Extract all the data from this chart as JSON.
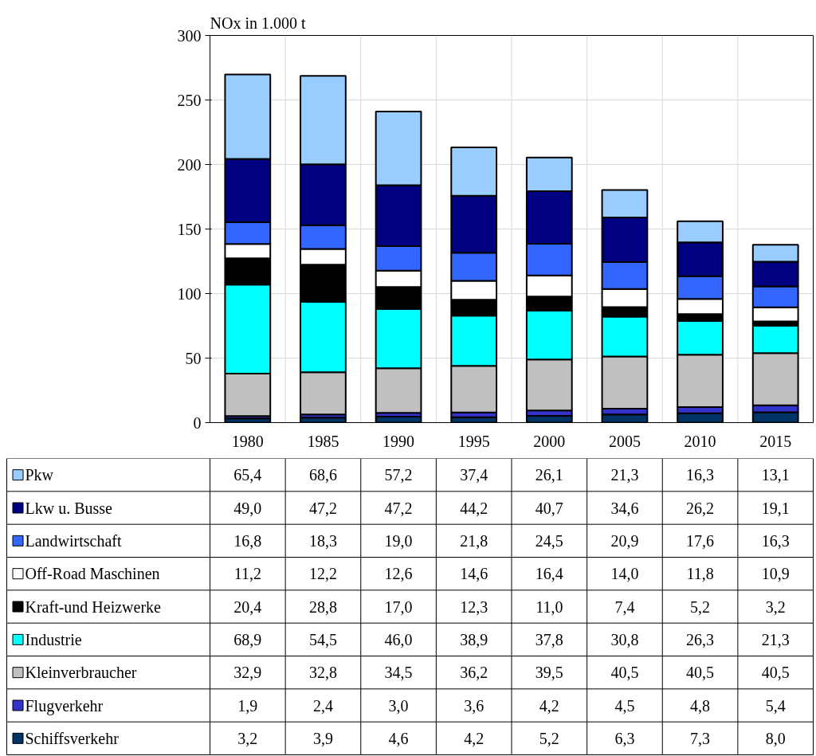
{
  "chart_data": {
    "type": "bar",
    "stacked": true,
    "ylabel": "NOx in 1.000 t",
    "categories": [
      "1980",
      "1985",
      "1990",
      "1995",
      "2000",
      "2005",
      "2010",
      "2015"
    ],
    "ylim": [
      0,
      300
    ],
    "yticks": [
      0,
      50,
      100,
      150,
      200,
      250,
      300
    ],
    "grid": true,
    "legend": "bottom",
    "series": [
      {
        "name": "Schiffsverkehr",
        "color": "#003366",
        "values": [
          3.2,
          3.9,
          4.6,
          4.2,
          5.2,
          6.3,
          7.3,
          8.0
        ],
        "value_labels": [
          "3,2",
          "3,9",
          "4,6",
          "4,2",
          "5,2",
          "6,3",
          "7,3",
          "8,0"
        ]
      },
      {
        "name": "Flugverkehr",
        "color": "#3333cc",
        "values": [
          1.9,
          2.4,
          3.0,
          3.6,
          4.2,
          4.5,
          4.8,
          5.4
        ],
        "value_labels": [
          "1,9",
          "2,4",
          "3,0",
          "3,6",
          "4,2",
          "4,5",
          "4,8",
          "5,4"
        ]
      },
      {
        "name": "Kleinverbraucher",
        "color": "#c0c0c0",
        "values": [
          32.9,
          32.8,
          34.5,
          36.2,
          39.5,
          40.5,
          40.5,
          40.5
        ],
        "value_labels": [
          "32,9",
          "32,8",
          "34,5",
          "36,2",
          "39,5",
          "40,5",
          "40,5",
          "40,5"
        ]
      },
      {
        "name": "Industrie",
        "color": "#00ffff",
        "values": [
          68.9,
          54.5,
          46.0,
          38.9,
          37.8,
          30.8,
          26.3,
          21.3
        ],
        "value_labels": [
          "68,9",
          "54,5",
          "46,0",
          "38,9",
          "37,8",
          "30,8",
          "26,3",
          "21,3"
        ]
      },
      {
        "name": "Kraft-und Heizwerke",
        "color": "#000000",
        "values": [
          20.4,
          28.8,
          17.0,
          12.3,
          11.0,
          7.4,
          5.2,
          3.2
        ],
        "value_labels": [
          "20,4",
          "28,8",
          "17,0",
          "12,3",
          "11,0",
          "7,4",
          "5,2",
          "3,2"
        ]
      },
      {
        "name": "Off-Road Maschinen",
        "color": "#ffffff",
        "values": [
          11.2,
          12.2,
          12.6,
          14.6,
          16.4,
          14.0,
          11.8,
          10.9
        ],
        "value_labels": [
          "11,2",
          "12,2",
          "12,6",
          "14,6",
          "16,4",
          "14,0",
          "11,8",
          "10,9"
        ]
      },
      {
        "name": "Landwirtschaft",
        "color": "#3366ff",
        "values": [
          16.8,
          18.3,
          19.0,
          21.8,
          24.5,
          20.9,
          17.6,
          16.3
        ],
        "value_labels": [
          "16,8",
          "18,3",
          "19,0",
          "21,8",
          "24,5",
          "20,9",
          "17,6",
          "16,3"
        ]
      },
      {
        "name": "Lkw u. Busse",
        "color": "#000080",
        "values": [
          49.0,
          47.2,
          47.2,
          44.2,
          40.7,
          34.6,
          26.2,
          19.1
        ],
        "value_labels": [
          "49,0",
          "47,2",
          "47,2",
          "44,2",
          "40,7",
          "34,6",
          "26,2",
          "19,1"
        ]
      },
      {
        "name": "Pkw",
        "color": "#99ccff",
        "values": [
          65.4,
          68.6,
          57.2,
          37.4,
          26.1,
          21.3,
          16.3,
          13.1
        ],
        "value_labels": [
          "65,4",
          "68,6",
          "57,2",
          "37,4",
          "26,1",
          "21,3",
          "16,3",
          "13,1"
        ]
      }
    ]
  }
}
